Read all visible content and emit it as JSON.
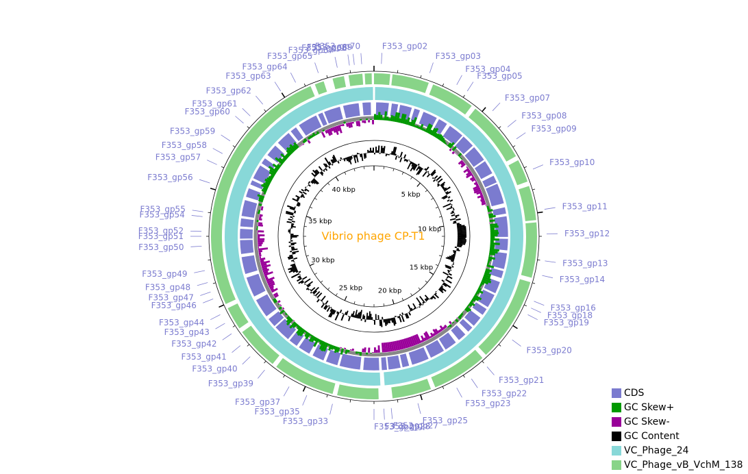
{
  "title": "Vibrio phage CP-T1",
  "colors": {
    "title": "#FFA500",
    "cds": "#7B7BCF",
    "gc_skew_pos": "#009900",
    "gc_skew_neg": "#990099",
    "gc_content": "#000000",
    "vc_phage_24": "#88D8D8",
    "vc_phage_vbvchm": "#88D488",
    "gene_label": "#7B7BCF"
  },
  "size_kbp": 44,
  "scale_ticks": [
    {
      "kbp": 5,
      "label": "5 kbp"
    },
    {
      "kbp": 10,
      "label": "10 kbp"
    },
    {
      "kbp": 15,
      "label": "15 kbp"
    },
    {
      "kbp": 20,
      "label": "20 kbp"
    },
    {
      "kbp": 25,
      "label": "25 kbp"
    },
    {
      "kbp": 30,
      "label": "30 kbp"
    },
    {
      "kbp": 35,
      "label": "35 kbp"
    },
    {
      "kbp": 40,
      "label": "40 kbp"
    }
  ],
  "legend": [
    {
      "label": "CDS",
      "color": "#7B7BCF"
    },
    {
      "label": "GC Skew+",
      "color": "#009900"
    },
    {
      "label": "GC Skew-",
      "color": "#990099"
    },
    {
      "label": "GC Content",
      "color": "#000000"
    },
    {
      "label": "VC_Phage_24",
      "color": "#88D8D8"
    },
    {
      "label": "VC_Phage_vB_VchM_138",
      "color": "#88D488"
    }
  ],
  "genes": [
    {
      "label": "F353_gp02",
      "pos_kbp": 0.3
    },
    {
      "label": "F353_gp03",
      "pos_kbp": 2.3
    },
    {
      "label": "F353_gp04",
      "pos_kbp": 3.5
    },
    {
      "label": "F353_gp05",
      "pos_kbp": 4.0
    },
    {
      "label": "F353_gp07",
      "pos_kbp": 5.3
    },
    {
      "label": "F353_gp08",
      "pos_kbp": 6.2
    },
    {
      "label": "F353_gp09",
      "pos_kbp": 6.8
    },
    {
      "label": "F353_gp10",
      "pos_kbp": 8.2
    },
    {
      "label": "F353_gp11",
      "pos_kbp": 9.9
    },
    {
      "label": "F353_gp12",
      "pos_kbp": 10.9
    },
    {
      "label": "F353_gp13",
      "pos_kbp": 12.0
    },
    {
      "label": "F353_gp14",
      "pos_kbp": 12.6
    },
    {
      "label": "F353_gp16",
      "pos_kbp": 13.7
    },
    {
      "label": "F353_gp18",
      "pos_kbp": 14.0
    },
    {
      "label": "F353_gp19",
      "pos_kbp": 14.3
    },
    {
      "label": "F353_gp20",
      "pos_kbp": 15.5
    },
    {
      "label": "F353_gp21",
      "pos_kbp": 17.0
    },
    {
      "label": "F353_gp22",
      "pos_kbp": 17.8
    },
    {
      "label": "F353_gp23",
      "pos_kbp": 18.5
    },
    {
      "label": "F353_gp25",
      "pos_kbp": 20.2
    },
    {
      "label": "F353_gp27",
      "pos_kbp": 21.3
    },
    {
      "label": "F353_gp28",
      "pos_kbp": 21.6
    },
    {
      "label": "F353_gp29",
      "pos_kbp": 22.0
    },
    {
      "label": "F353_gp33",
      "pos_kbp": 23.7
    },
    {
      "label": "F353_gp35",
      "pos_kbp": 24.8
    },
    {
      "label": "F353_gp37",
      "pos_kbp": 25.6
    },
    {
      "label": "F353_gp39",
      "pos_kbp": 26.8
    },
    {
      "label": "F353_gp40",
      "pos_kbp": 27.6
    },
    {
      "label": "F353_gp41",
      "pos_kbp": 28.2
    },
    {
      "label": "F353_gp42",
      "pos_kbp": 28.8
    },
    {
      "label": "F353_gp43",
      "pos_kbp": 29.3
    },
    {
      "label": "F353_gp44",
      "pos_kbp": 29.7
    },
    {
      "label": "F353_gp46",
      "pos_kbp": 30.4
    },
    {
      "label": "F353_gp47",
      "pos_kbp": 30.7
    },
    {
      "label": "F353_gp48",
      "pos_kbp": 31.1
    },
    {
      "label": "F353_gp49",
      "pos_kbp": 31.6
    },
    {
      "label": "F353_gp50",
      "pos_kbp": 32.6
    },
    {
      "label": "F353_gp51",
      "pos_kbp": 33.0
    },
    {
      "label": "F353_gp52",
      "pos_kbp": 33.2
    },
    {
      "label": "F353_gp54",
      "pos_kbp": 33.8
    },
    {
      "label": "F353_gp55",
      "pos_kbp": 34.0
    },
    {
      "label": "F353_gp56",
      "pos_kbp": 35.2
    },
    {
      "label": "F353_gp57",
      "pos_kbp": 36.0
    },
    {
      "label": "F353_gp58",
      "pos_kbp": 36.5
    },
    {
      "label": "F353_gp59",
      "pos_kbp": 37.1
    },
    {
      "label": "F353_gp60",
      "pos_kbp": 38.0
    },
    {
      "label": "F353_gp61",
      "pos_kbp": 38.4
    },
    {
      "label": "F353_gp62",
      "pos_kbp": 39.1
    },
    {
      "label": "F353_gp63",
      "pos_kbp": 40.0
    },
    {
      "label": "F353_gp64",
      "pos_kbp": 40.7
    },
    {
      "label": "F353_gp65",
      "pos_kbp": 41.7
    },
    {
      "label": "F353_gp67",
      "pos_kbp": 42.5
    },
    {
      "label": "F353_gp68",
      "pos_kbp": 43.0
    },
    {
      "label": "F353_gp69",
      "pos_kbp": 43.2
    },
    {
      "label": "F353_gp70",
      "pos_kbp": 43.5
    }
  ]
}
